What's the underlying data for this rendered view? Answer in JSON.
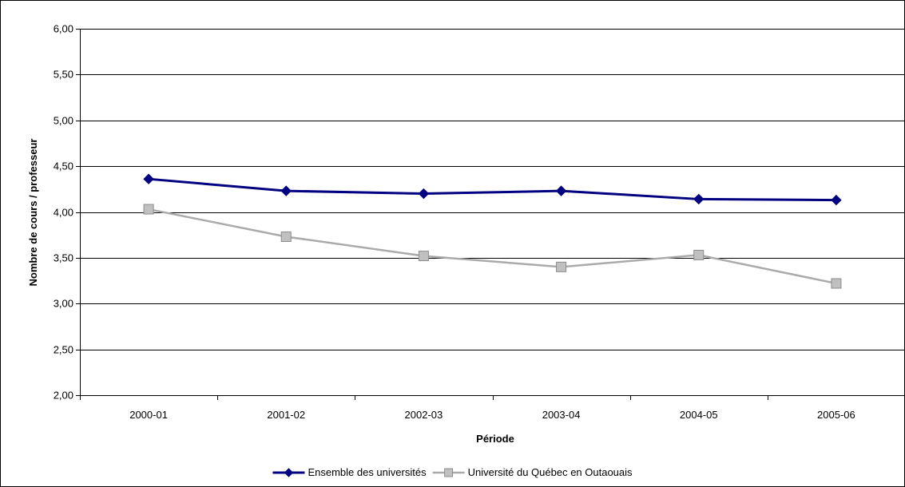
{
  "chart_data": {
    "type": "line",
    "title": "",
    "xlabel": "Période",
    "ylabel": "Nombre de cours / professeur",
    "categories": [
      "2000-01",
      "2001-02",
      "2002-03",
      "2003-04",
      "2004-05",
      "2005-06"
    ],
    "ylim": [
      2.0,
      6.0
    ],
    "yticks": [
      "2,00",
      "2,50",
      "3,00",
      "3,50",
      "4,00",
      "4,50",
      "5,00",
      "5,50",
      "6,00"
    ],
    "grid": true,
    "legend_position": "bottom",
    "series": [
      {
        "name": "Ensemble des universités",
        "values": [
          4.36,
          4.23,
          4.2,
          4.23,
          4.14,
          4.13
        ],
        "color": "#000080",
        "marker": "diamond"
      },
      {
        "name": "Université du Québec en Outaouais",
        "values": [
          4.03,
          3.73,
          3.52,
          3.4,
          3.53,
          3.22
        ],
        "color": "#aaaaaa",
        "marker": "square"
      }
    ]
  }
}
